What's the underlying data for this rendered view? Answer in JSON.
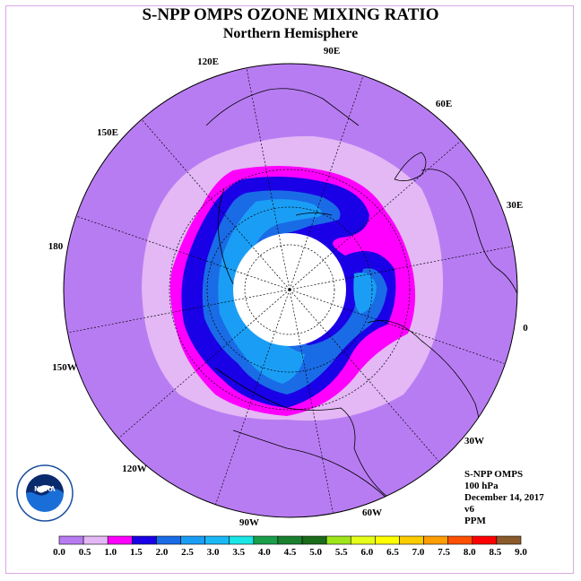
{
  "title": "S-NPP OMPS OZONE MIXING RATIO",
  "subtitle": "Northern Hemisphere",
  "longitude_labels": [
    {
      "text": "90E"
    },
    {
      "text": "60E"
    },
    {
      "text": "30E"
    },
    {
      "text": "0"
    },
    {
      "text": "30W"
    },
    {
      "text": "60W"
    },
    {
      "text": "90W"
    },
    {
      "text": "120W"
    },
    {
      "text": "150W"
    },
    {
      "text": "180"
    },
    {
      "text": "150E"
    },
    {
      "text": "120E"
    }
  ],
  "info": {
    "instrument": "S-NPP OMPS",
    "level": "100 hPa",
    "date": "December 14, 2017",
    "version": "v6",
    "units": "PPM"
  },
  "logo": {
    "text": "NOAA",
    "icon": "noaa-logo-icon"
  },
  "colorbar": {
    "ticks": [
      "0.0",
      "0.5",
      "1.0",
      "1.5",
      "2.0",
      "2.5",
      "3.0",
      "3.5",
      "4.0",
      "4.5",
      "5.0",
      "5.5",
      "6.0",
      "6.5",
      "7.0",
      "7.5",
      "8.0",
      "8.5",
      "9.0"
    ],
    "colors": [
      "#b87cf2",
      "#e3b8f5",
      "#ff00ff",
      "#1a00e6",
      "#1a6be6",
      "#1a9ef5",
      "#1ab8f5",
      "#1ae6e6",
      "#1a9e4a",
      "#1a8030",
      "#1a6b1a",
      "#9ee61a",
      "#e6ff1a",
      "#ffff00",
      "#ffcc00",
      "#ff9e00",
      "#ff5000",
      "#ff0000",
      "#8b5a2b"
    ]
  },
  "map_colors": {
    "background_disk": "#b87cf2",
    "contour_05": "#e3b8f5",
    "contour_10": "#ff00ff",
    "contour_15": "#1a00e6",
    "contour_20": "#1a6be6",
    "contour_25": "#1a9ef5",
    "no_data_pole": "#ffffff"
  }
}
